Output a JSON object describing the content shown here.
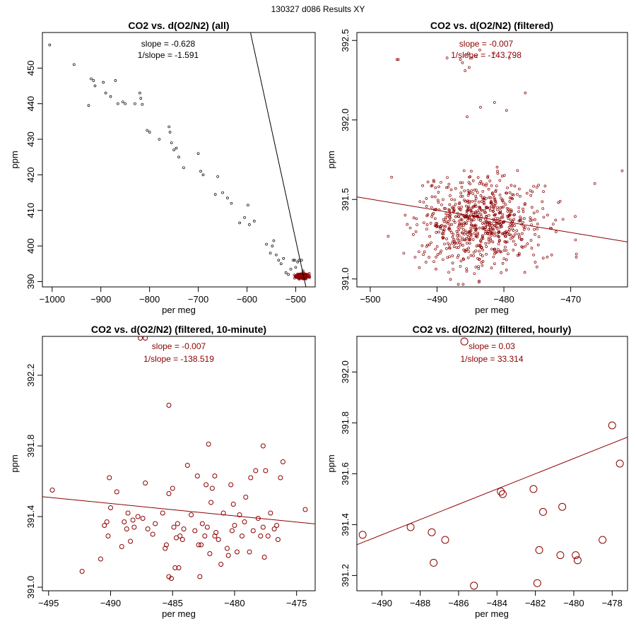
{
  "figure": {
    "suptitle": "130327   d086   Results XY"
  },
  "chart_data": [
    {
      "type": "scatter",
      "title": "CO2 vs. d(O2/N2) (all)",
      "xlabel": "per meg",
      "ylabel": "ppm",
      "xlim": [
        -1020,
        -460
      ],
      "ylim": [
        388.5,
        460
      ],
      "xticks": [
        -1000,
        -900,
        -800,
        -700,
        -600,
        -500
      ],
      "yticks": [
        390,
        400,
        410,
        420,
        430,
        440,
        450
      ],
      "color": "#000000",
      "point_radius": 1.5,
      "fit": {
        "slope": -0.628,
        "intercept": 87.7
      },
      "annotation": {
        "color": "#000000",
        "lines": [
          "slope = -0.628",
          "1/slope = -1.591"
        ]
      },
      "series": [
        {
          "name": "all",
          "points": [
            [
              -1005,
              456.5
            ],
            [
              -955,
              451
            ],
            [
              -925,
              439.5
            ],
            [
              -920,
              447
            ],
            [
              -915,
              446.5
            ],
            [
              -912,
              445
            ],
            [
              -895,
              446
            ],
            [
              -890,
              443
            ],
            [
              -880,
              442
            ],
            [
              -870,
              446.5
            ],
            [
              -865,
              440
            ],
            [
              -855,
              440.5
            ],
            [
              -850,
              440
            ],
            [
              -830,
              440
            ],
            [
              -820,
              443
            ],
            [
              -818,
              441.5
            ],
            [
              -815,
              439.8
            ],
            [
              -805,
              432.5
            ],
            [
              -800,
              432
            ],
            [
              -780,
              430
            ],
            [
              -760,
              433.5
            ],
            [
              -758,
              432
            ],
            [
              -755,
              429
            ],
            [
              -750,
              427
            ],
            [
              -745,
              427.5
            ],
            [
              -740,
              425
            ],
            [
              -730,
              422
            ],
            [
              -700,
              426
            ],
            [
              -695,
              421
            ],
            [
              -690,
              420
            ],
            [
              -665,
              414.5
            ],
            [
              -660,
              419.5
            ],
            [
              -650,
              415
            ],
            [
              -640,
              413.5
            ],
            [
              -632,
              412
            ],
            [
              -615,
              406.5
            ],
            [
              -605,
              408
            ],
            [
              -598,
              411.5
            ],
            [
              -595,
              406
            ],
            [
              -585,
              407
            ],
            [
              -560,
              400.5
            ],
            [
              -552,
              398
            ],
            [
              -548,
              400
            ],
            [
              -545,
              401.5
            ],
            [
              -540,
              397.5
            ],
            [
              -535,
              396
            ],
            [
              -530,
              395
            ],
            [
              -525,
              396.5
            ],
            [
              -520,
              392.5
            ],
            [
              -515,
              392
            ],
            [
              -510,
              393.5
            ],
            [
              -505,
              396
            ],
            [
              -502,
              396
            ],
            [
              -500,
              394
            ],
            [
              -496,
              395.5
            ],
            [
              -493,
              396
            ],
            [
              -488,
              396
            ],
            [
              -485,
              393
            ],
            [
              -478,
              392
            ],
            [
              -476,
              392
            ]
          ]
        },
        {
          "name": "dense cluster",
          "color": "#8b0000",
          "cluster": {
            "n": 260,
            "xmean": -486,
            "xsd": 6,
            "ymean": 391.55,
            "ysd": 0.35,
            "seed": 11
          }
        }
      ]
    },
    {
      "type": "scatter",
      "title": "CO2 vs. d(O2/N2) (filtered)",
      "xlabel": "per meg",
      "ylabel": "ppm",
      "xlim": [
        -502,
        -461.5
      ],
      "ylim": [
        390.95,
        392.55
      ],
      "xticks": [
        -500,
        -490,
        -480,
        -470
      ],
      "yticks": [
        391.0,
        391.5,
        392.0,
        392.5
      ],
      "ytick_labels": [
        "391.0",
        "391.5",
        "392.0",
        "392.5"
      ],
      "color": "#8b0000",
      "point_radius": 1.5,
      "fit": {
        "slope": -0.007,
        "intercept": 388.002
      },
      "annotation": {
        "color": "#8b0000",
        "lines": [
          "slope = -0.007",
          "1/slope = -143.798"
        ]
      },
      "series": [
        {
          "name": "filtered outliers",
          "points": [
            [
              -495.8,
              392.38
            ],
            [
              -496,
              392.38
            ],
            [
              -488.5,
              392.39
            ],
            [
              -486.5,
              392.38
            ],
            [
              -486.2,
              392.36
            ],
            [
              -485.7,
              392.41
            ],
            [
              -485.3,
              392.42
            ],
            [
              -484.8,
              392.39
            ],
            [
              -483.6,
              392.44
            ],
            [
              -485.2,
              392.33
            ],
            [
              -485.8,
              392.31
            ],
            [
              -484.2,
              392.4
            ],
            [
              -481.5,
              392.42
            ],
            [
              -479.2,
              392.39
            ],
            [
              -479.6,
              392.06
            ],
            [
              -483.5,
              392.08
            ],
            [
              -481.4,
              392.11
            ],
            [
              -476.8,
              392.17
            ],
            [
              -485.5,
              392.02
            ],
            [
              -462.3,
              391.68
            ],
            [
              -496.8,
              391.64
            ],
            [
              -490.5,
              391.62
            ],
            [
              -466.4,
              391.6
            ]
          ]
        },
        {
          "name": "filtered cluster",
          "cluster": {
            "n": 720,
            "xmean": -483.5,
            "xsd": 4.6,
            "ymean": 391.35,
            "ysd": 0.14,
            "seed": 7
          }
        }
      ]
    },
    {
      "type": "scatter",
      "title": "CO2 vs. d(O2/N2) (filtered, 10-minute)",
      "xlabel": "per meg",
      "ylabel": "ppm",
      "xlim": [
        -495.5,
        -473.5
      ],
      "ylim": [
        390.98,
        392.42
      ],
      "xticks": [
        -495,
        -490,
        -485,
        -480,
        -475
      ],
      "yticks": [
        391.0,
        391.4,
        391.8,
        392.2
      ],
      "ytick_labels": [
        "391.0",
        "391.4",
        "391.8",
        "392.2"
      ],
      "color": "#8b0000",
      "point_radius": 3,
      "fit": {
        "slope": -0.007,
        "intercept": 388.044
      },
      "annotation": {
        "color": "#8b0000",
        "lines": [
          "slope = -0.007",
          "1/slope = -138.519"
        ]
      },
      "series": [
        {
          "name": "10-minute",
          "points": [
            [
              -494.7,
              391.55
            ],
            [
              -492.3,
              391.09
            ],
            [
              -490.8,
              391.16
            ],
            [
              -490.5,
              391.35
            ],
            [
              -490.3,
              391.37
            ],
            [
              -490.2,
              391.29
            ],
            [
              -490.1,
              391.62
            ],
            [
              -490,
              391.45
            ],
            [
              -489.5,
              391.54
            ],
            [
              -489.1,
              391.23
            ],
            [
              -488.9,
              391.37
            ],
            [
              -488.7,
              391.33
            ],
            [
              -488.6,
              391.42
            ],
            [
              -488.2,
              391.38
            ],
            [
              -488.1,
              391.34
            ],
            [
              -487.8,
              391.4
            ],
            [
              -487.4,
              391.39
            ],
            [
              -487.2,
              391.59
            ],
            [
              -487,
              391.33
            ],
            [
              -486.6,
              391.3
            ],
            [
              -486.4,
              391.36
            ],
            [
              -485.8,
              391.42
            ],
            [
              -485.6,
              391.22
            ],
            [
              -485.5,
              391.24
            ],
            [
              -485.3,
              391.53
            ],
            [
              -485.1,
              391.05
            ],
            [
              -484.9,
              391.34
            ],
            [
              -484.8,
              391.11
            ],
            [
              -484.7,
              391.28
            ],
            [
              -484.6,
              391.36
            ],
            [
              -484.5,
              391.11
            ],
            [
              -484.4,
              391.29
            ],
            [
              -484.2,
              391.27
            ],
            [
              -484.1,
              391.33
            ],
            [
              -483.8,
              391.69
            ],
            [
              -483.5,
              391.41
            ],
            [
              -483.2,
              391.32
            ],
            [
              -482.9,
              391.24
            ],
            [
              -482.7,
              391.24
            ],
            [
              -482.6,
              391.36
            ],
            [
              -482.4,
              391.29
            ],
            [
              -482.3,
              391.58
            ],
            [
              -482.2,
              391.34
            ],
            [
              -482,
              391.19
            ],
            [
              -481.9,
              391.48
            ],
            [
              -481.8,
              391.56
            ],
            [
              -481.6,
              391.29
            ],
            [
              -481.5,
              391.31
            ],
            [
              -481.3,
              391.27
            ],
            [
              -481.1,
              391.13
            ],
            [
              -480.9,
              391.42
            ],
            [
              -480.6,
              391.22
            ],
            [
              -480.5,
              391.18
            ],
            [
              -480.2,
              391.32
            ],
            [
              -480,
              391.35
            ],
            [
              -479.8,
              391.2
            ],
            [
              -479.6,
              391.41
            ],
            [
              -479.4,
              391.29
            ],
            [
              -479.2,
              391.37
            ],
            [
              -479.1,
              391.51
            ],
            [
              -478.8,
              391.2
            ],
            [
              -478.5,
              391.32
            ],
            [
              -478.3,
              391.66
            ],
            [
              -478.1,
              391.39
            ],
            [
              -477.9,
              391.29
            ],
            [
              -477.7,
              391.34
            ],
            [
              -477.6,
              391.17
            ],
            [
              -477.3,
              391.29
            ],
            [
              -477.1,
              391.42
            ],
            [
              -476.8,
              391.33
            ],
            [
              -476.6,
              391.35
            ],
            [
              -476.5,
              391.27
            ],
            [
              -476.3,
              391.62
            ],
            [
              -476.1,
              391.71
            ],
            [
              -474.3,
              391.44
            ],
            [
              -485.3,
              392.03
            ],
            [
              -482.1,
              391.81
            ],
            [
              -487.2,
              392.41
            ],
            [
              -487.6,
              392.41
            ],
            [
              -477.7,
              391.8
            ],
            [
              -477.5,
              391.66
            ],
            [
              -485.0,
              391.56
            ],
            [
              -483.0,
              391.63
            ],
            [
              -481.6,
              391.63
            ],
            [
              -480.1,
              391.47
            ],
            [
              -480.3,
              391.58
            ],
            [
              -478.7,
              391.62
            ],
            [
              -488.4,
              391.26
            ],
            [
              -485.3,
              391.06
            ],
            [
              -482.8,
              391.06
            ]
          ]
        }
      ]
    },
    {
      "type": "scatter",
      "title": "CO2 vs. d(O2/N2) (filtered, hourly)",
      "xlabel": "per meg",
      "ylabel": "ppm",
      "xlim": [
        -491.3,
        -477.2
      ],
      "ylim": [
        391.14,
        392.14
      ],
      "xticks": [
        -490,
        -488,
        -486,
        -484,
        -482,
        -480,
        -478
      ],
      "yticks": [
        391.2,
        391.4,
        391.6,
        391.8,
        392.0
      ],
      "ytick_labels": [
        "391.2",
        "391.4",
        "391.6",
        "391.8",
        "392.0"
      ],
      "color": "#8b0000",
      "point_radius": 5,
      "fit": {
        "slope": 0.03,
        "intercept": 406.06
      },
      "annotation": {
        "color": "#8b0000",
        "lines": [
          "slope = 0.03",
          "1/slope = 33.314"
        ]
      },
      "series": [
        {
          "name": "hourly",
          "points": [
            [
              -491,
              391.36
            ],
            [
              -488.5,
              391.39
            ],
            [
              -487.4,
              391.37
            ],
            [
              -487.3,
              391.25
            ],
            [
              -486.7,
              391.34
            ],
            [
              -485.7,
              392.12
            ],
            [
              -485.2,
              391.16
            ],
            [
              -483.8,
              391.53
            ],
            [
              -483.7,
              391.52
            ],
            [
              -482.1,
              391.54
            ],
            [
              -481.9,
              391.17
            ],
            [
              -481.8,
              391.3
            ],
            [
              -481.6,
              391.45
            ],
            [
              -480.7,
              391.28
            ],
            [
              -480.6,
              391.47
            ],
            [
              -479.9,
              391.28
            ],
            [
              -479.8,
              391.26
            ],
            [
              -478.5,
              391.34
            ],
            [
              -478,
              391.79
            ],
            [
              -477.6,
              391.64
            ]
          ]
        }
      ]
    }
  ]
}
